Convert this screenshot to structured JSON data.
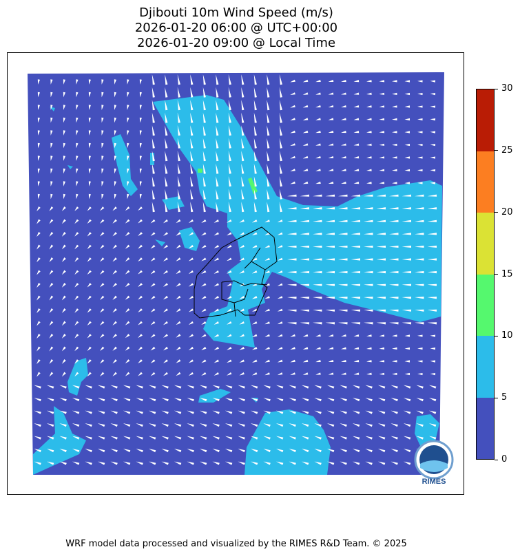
{
  "title": {
    "line1": "Djibouti 10m Wind Speed (m/s)",
    "line2": "2026-01-20 06:00 @ UTC+00:00",
    "line3": "2026-01-20 09:00 @ Local Time"
  },
  "colorbar": {
    "ticks": [
      "0",
      "5",
      "10",
      "15",
      "20",
      "25",
      "30"
    ],
    "colors": [
      "#4450bd",
      "#2cbcea",
      "#55f86e",
      "#dbe234",
      "#fc7e21",
      "#b91c05"
    ]
  },
  "map": {
    "background_color": "#4450bd",
    "arrow_color": "#ffffff",
    "border_color": "#000000"
  },
  "logo": {
    "text": "RIMES"
  },
  "footer": "WRF model data processed and visualized by the RIMES R&D Team. © 2025"
}
